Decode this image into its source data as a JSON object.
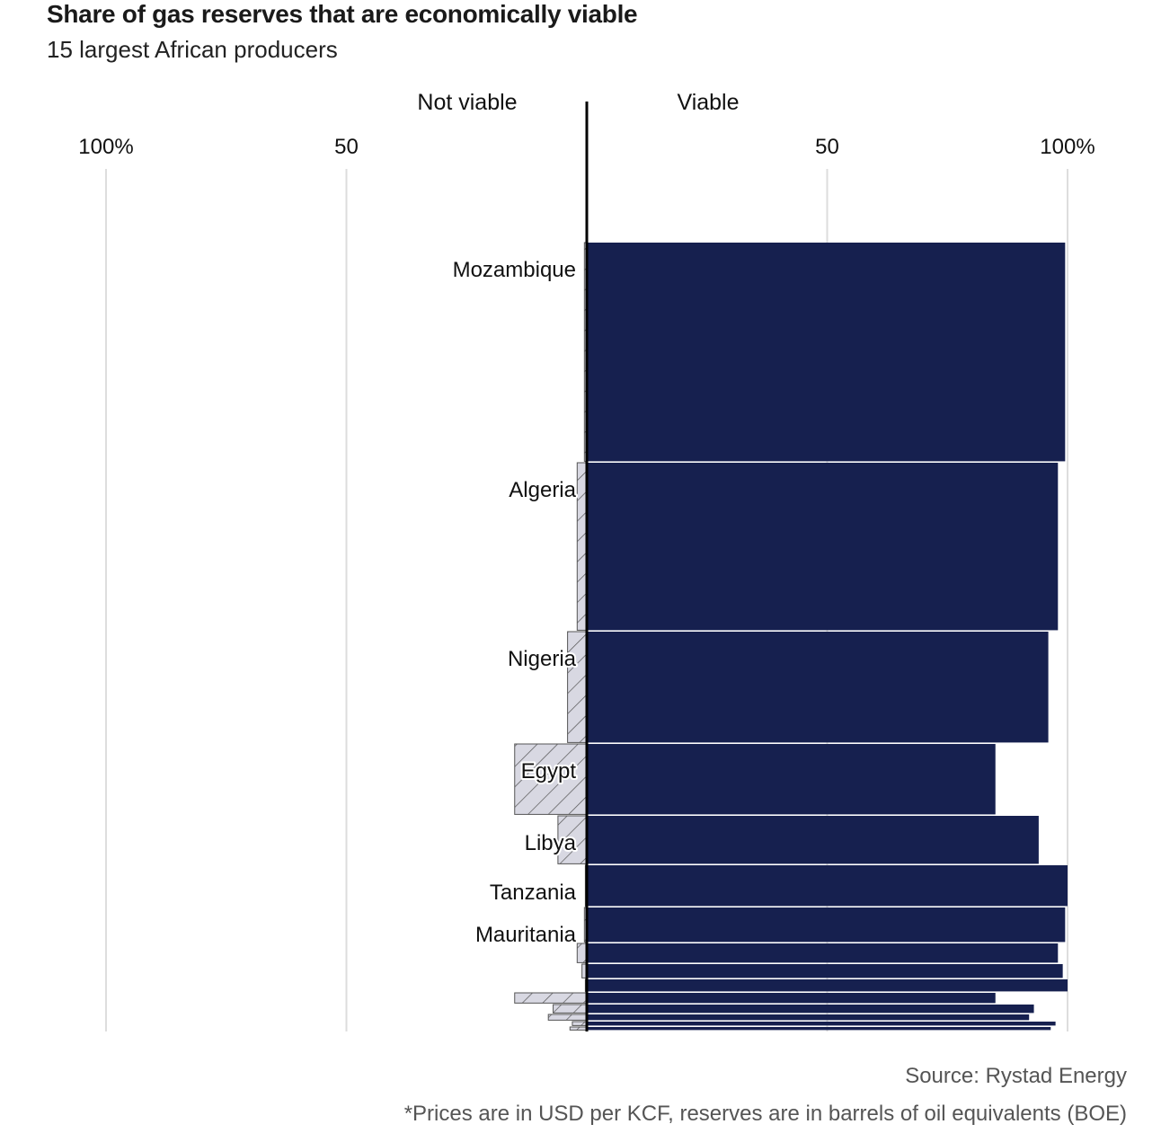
{
  "title": "Share of gas reserves that are economically viable",
  "subtitle": "15 largest African producers",
  "source": "Source: Rystad Energy",
  "footnote": "*Prices are in USD per KCF, reserves are in barrels of oil equivalents (BOE)",
  "chart_data": {
    "type": "bar",
    "orientation": "diverging-horizontal, bar thickness proportional to reserves",
    "left_header": "Not viable",
    "right_header": "Viable",
    "left_ticks": [
      {
        "value": 100,
        "label": "100%"
      },
      {
        "value": 50,
        "label": "50"
      }
    ],
    "right_ticks": [
      {
        "value": 50,
        "label": "50"
      },
      {
        "value": 100,
        "label": "100%"
      }
    ],
    "xlim": [
      -100,
      100
    ],
    "colors": {
      "viable": "#16204f",
      "not_viable": "#d8d8e2",
      "hatch": "#555555",
      "grid": "#dddddd",
      "axis": "#000000"
    },
    "series": [
      {
        "label": "Mozambique",
        "viable": 99.5,
        "not_viable": 0.5,
        "relative_reserves": 245
      },
      {
        "label": "Algeria",
        "viable": 98,
        "not_viable": 2,
        "relative_reserves": 188
      },
      {
        "label": "Nigeria",
        "viable": 96,
        "not_viable": 4,
        "relative_reserves": 125
      },
      {
        "label": "Egypt",
        "viable": 85,
        "not_viable": 15,
        "relative_reserves": 80
      },
      {
        "label": "Libya",
        "viable": 94,
        "not_viable": 6,
        "relative_reserves": 55
      },
      {
        "label": "Tanzania",
        "viable": 100,
        "not_viable": 0.3,
        "relative_reserves": 47
      },
      {
        "label": "Mauritania",
        "viable": 99.5,
        "not_viable": 0.5,
        "relative_reserves": 40
      },
      {
        "label": "",
        "viable": 98,
        "not_viable": 2,
        "relative_reserves": 23
      },
      {
        "label": "",
        "viable": 99,
        "not_viable": 1,
        "relative_reserves": 17
      },
      {
        "label": "",
        "viable": 100,
        "not_viable": 0.3,
        "relative_reserves": 15
      },
      {
        "label": "",
        "viable": 85,
        "not_viable": 15,
        "relative_reserves": 13
      },
      {
        "label": "",
        "viable": 93,
        "not_viable": 7,
        "relative_reserves": 11
      },
      {
        "label": "",
        "viable": 92,
        "not_viable": 8,
        "relative_reserves": 8
      },
      {
        "label": "",
        "viable": 97.5,
        "not_viable": 3,
        "relative_reserves": 6
      },
      {
        "label": "",
        "viable": 96.5,
        "not_viable": 3.5,
        "relative_reserves": 5
      }
    ]
  }
}
